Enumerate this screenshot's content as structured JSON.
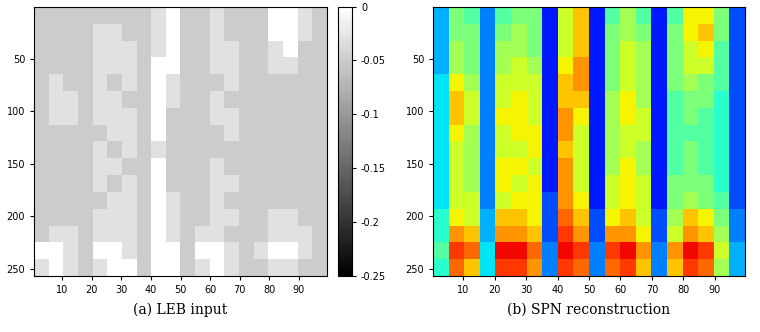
{
  "chart_data": [
    {
      "type": "heatmap",
      "xlabel": "(a) LEB input",
      "color": "gray",
      "xlim": [
        0.5,
        99.5
      ],
      "ylim": [
        256.5,
        0.5
      ],
      "xticks": [
        10,
        20,
        30,
        40,
        50,
        60,
        70,
        80,
        90
      ],
      "yticks": [
        50,
        100,
        150,
        200,
        250
      ],
      "color_range": [
        -0.25,
        0
      ],
      "colorbar": {
        "range": [
          -0.25,
          0
        ],
        "ticks": [
          0,
          -0.05,
          -0.1,
          -0.15,
          -0.2,
          -0.25
        ]
      },
      "cells": [
        [
          -0.05,
          -0.05,
          -0.05,
          -0.05,
          -0.05,
          -0.05,
          -0.05,
          -0.05,
          -0.03,
          0,
          -0.05,
          -0.05,
          -0.03,
          -0.05,
          -0.05,
          -0.05,
          0,
          0,
          -0.03,
          -0.05
        ],
        [
          -0.05,
          -0.05,
          -0.05,
          -0.05,
          -0.03,
          -0.03,
          -0.05,
          -0.05,
          -0.03,
          0,
          -0.05,
          -0.05,
          -0.03,
          -0.05,
          -0.05,
          -0.05,
          0,
          0,
          -0.03,
          -0.05
        ],
        [
          -0.05,
          -0.05,
          -0.05,
          -0.05,
          -0.03,
          -0.03,
          -0.03,
          -0.05,
          -0.03,
          0,
          -0.05,
          -0.05,
          -0.03,
          -0.03,
          -0.05,
          -0.05,
          -0.03,
          0,
          -0.05,
          -0.05
        ],
        [
          -0.05,
          -0.05,
          -0.05,
          -0.05,
          -0.03,
          -0.03,
          -0.03,
          -0.05,
          0,
          0,
          -0.05,
          -0.05,
          -0.03,
          -0.03,
          -0.05,
          -0.05,
          -0.03,
          -0.03,
          -0.05,
          -0.05
        ],
        [
          -0.05,
          -0.03,
          -0.05,
          -0.05,
          -0.03,
          -0.05,
          -0.03,
          -0.05,
          0,
          -0.03,
          -0.05,
          -0.05,
          -0.05,
          -0.03,
          -0.05,
          -0.05,
          -0.05,
          -0.05,
          -0.05,
          -0.05
        ],
        [
          -0.05,
          -0.03,
          -0.03,
          -0.05,
          -0.03,
          -0.03,
          -0.05,
          -0.05,
          0,
          -0.03,
          -0.05,
          -0.05,
          -0.03,
          -0.05,
          -0.05,
          -0.05,
          -0.05,
          -0.05,
          -0.05,
          -0.05
        ],
        [
          -0.05,
          -0.03,
          -0.03,
          -0.05,
          -0.03,
          -0.03,
          -0.03,
          -0.05,
          0,
          -0.05,
          -0.05,
          -0.05,
          -0.03,
          -0.03,
          -0.05,
          -0.05,
          -0.05,
          -0.05,
          -0.05,
          -0.05
        ],
        [
          -0.05,
          -0.05,
          -0.05,
          -0.05,
          -0.05,
          -0.03,
          -0.03,
          -0.05,
          0,
          -0.05,
          -0.05,
          -0.05,
          -0.05,
          -0.03,
          -0.05,
          -0.05,
          -0.05,
          -0.05,
          -0.05,
          -0.05
        ],
        [
          -0.05,
          -0.05,
          -0.05,
          -0.05,
          -0.03,
          -0.05,
          -0.03,
          -0.05,
          -0.03,
          -0.05,
          -0.05,
          -0.05,
          -0.05,
          -0.05,
          -0.05,
          -0.05,
          -0.05,
          -0.05,
          -0.05,
          -0.05
        ],
        [
          -0.05,
          -0.05,
          -0.05,
          -0.05,
          -0.03,
          -0.03,
          -0.05,
          -0.05,
          0,
          -0.05,
          -0.05,
          -0.05,
          -0.03,
          -0.05,
          -0.05,
          -0.05,
          -0.05,
          -0.05,
          -0.05,
          -0.05
        ],
        [
          -0.05,
          -0.05,
          -0.05,
          -0.05,
          -0.03,
          -0.05,
          -0.03,
          -0.05,
          0,
          -0.05,
          -0.05,
          -0.05,
          -0.03,
          -0.03,
          -0.05,
          -0.05,
          -0.05,
          -0.05,
          -0.05,
          -0.05
        ],
        [
          -0.05,
          -0.05,
          -0.05,
          -0.05,
          -0.05,
          -0.03,
          -0.03,
          -0.05,
          0,
          -0.03,
          -0.05,
          -0.05,
          -0.03,
          -0.05,
          -0.05,
          -0.05,
          -0.05,
          -0.05,
          -0.05,
          -0.05
        ],
        [
          -0.05,
          -0.05,
          -0.05,
          -0.05,
          -0.03,
          -0.03,
          -0.03,
          -0.05,
          0,
          -0.03,
          -0.05,
          -0.05,
          -0.03,
          -0.03,
          -0.05,
          -0.05,
          -0.03,
          -0.03,
          -0.05,
          -0.05
        ],
        [
          -0.05,
          -0.03,
          -0.03,
          -0.05,
          -0.03,
          -0.03,
          -0.03,
          -0.05,
          0,
          -0.03,
          -0.05,
          -0.03,
          -0.03,
          -0.05,
          -0.05,
          -0.05,
          -0.03,
          -0.03,
          -0.03,
          -0.05
        ],
        [
          0,
          0,
          -0.03,
          -0.05,
          0,
          0,
          -0.03,
          -0.05,
          0,
          0,
          -0.05,
          0,
          0,
          -0.03,
          -0.05,
          -0.03,
          0,
          0,
          -0.03,
          -0.05
        ],
        [
          -0.03,
          0,
          -0.03,
          -0.05,
          -0.03,
          0,
          0,
          -0.05,
          0,
          0,
          -0.05,
          -0.03,
          0,
          -0.03,
          -0.05,
          -0.05,
          -0.03,
          -0.03,
          -0.05,
          -0.05
        ]
      ]
    },
    {
      "type": "heatmap",
      "xlabel": "(b) SPN reconstruction",
      "color": "jet",
      "xlim": [
        0.5,
        99.5
      ],
      "ylim": [
        256.5,
        0.5
      ],
      "xticks": [
        10,
        20,
        30,
        40,
        50,
        60,
        70,
        80,
        90
      ],
      "yticks": [
        50,
        100,
        150,
        200,
        250
      ],
      "color_range": [
        0,
        1
      ],
      "cells": [
        [
          0.3,
          0.5,
          0.45,
          0.25,
          0.45,
          0.5,
          0.5,
          0.15,
          0.6,
          0.7,
          0.15,
          0.45,
          0.55,
          0.45,
          0.15,
          0.45,
          0.65,
          0.65,
          0.5,
          0.2
        ],
        [
          0.3,
          0.5,
          0.5,
          0.25,
          0.5,
          0.55,
          0.5,
          0.15,
          0.6,
          0.7,
          0.15,
          0.5,
          0.55,
          0.5,
          0.15,
          0.5,
          0.65,
          0.7,
          0.5,
          0.2
        ],
        [
          0.3,
          0.55,
          0.5,
          0.25,
          0.55,
          0.55,
          0.5,
          0.15,
          0.6,
          0.7,
          0.15,
          0.5,
          0.6,
          0.55,
          0.15,
          0.5,
          0.6,
          0.65,
          0.45,
          0.2
        ],
        [
          0.3,
          0.55,
          0.5,
          0.25,
          0.55,
          0.6,
          0.55,
          0.15,
          0.65,
          0.75,
          0.15,
          0.5,
          0.6,
          0.55,
          0.15,
          0.5,
          0.6,
          0.6,
          0.45,
          0.2
        ],
        [
          0.35,
          0.65,
          0.55,
          0.25,
          0.6,
          0.6,
          0.6,
          0.15,
          0.7,
          0.75,
          0.15,
          0.5,
          0.6,
          0.55,
          0.15,
          0.5,
          0.55,
          0.5,
          0.45,
          0.2
        ],
        [
          0.35,
          0.7,
          0.6,
          0.25,
          0.6,
          0.65,
          0.6,
          0.15,
          0.7,
          0.7,
          0.15,
          0.55,
          0.65,
          0.55,
          0.15,
          0.45,
          0.5,
          0.5,
          0.4,
          0.2
        ],
        [
          0.35,
          0.7,
          0.6,
          0.25,
          0.65,
          0.65,
          0.6,
          0.15,
          0.75,
          0.65,
          0.15,
          0.55,
          0.65,
          0.6,
          0.15,
          0.45,
          0.5,
          0.45,
          0.4,
          0.2
        ],
        [
          0.35,
          0.65,
          0.55,
          0.25,
          0.6,
          0.65,
          0.65,
          0.15,
          0.75,
          0.6,
          0.15,
          0.55,
          0.6,
          0.6,
          0.15,
          0.45,
          0.45,
          0.45,
          0.4,
          0.2
        ],
        [
          0.35,
          0.6,
          0.55,
          0.25,
          0.6,
          0.6,
          0.65,
          0.15,
          0.7,
          0.6,
          0.15,
          0.55,
          0.6,
          0.55,
          0.15,
          0.45,
          0.5,
          0.45,
          0.4,
          0.2
        ],
        [
          0.35,
          0.6,
          0.55,
          0.25,
          0.65,
          0.65,
          0.6,
          0.15,
          0.75,
          0.6,
          0.15,
          0.55,
          0.65,
          0.55,
          0.15,
          0.45,
          0.5,
          0.45,
          0.4,
          0.2
        ],
        [
          0.35,
          0.6,
          0.55,
          0.25,
          0.65,
          0.6,
          0.65,
          0.15,
          0.75,
          0.6,
          0.15,
          0.6,
          0.65,
          0.6,
          0.15,
          0.5,
          0.5,
          0.5,
          0.4,
          0.2
        ],
        [
          0.35,
          0.6,
          0.6,
          0.25,
          0.6,
          0.65,
          0.65,
          0.2,
          0.75,
          0.65,
          0.15,
          0.6,
          0.65,
          0.6,
          0.15,
          0.5,
          0.55,
          0.5,
          0.45,
          0.2
        ],
        [
          0.4,
          0.65,
          0.6,
          0.3,
          0.7,
          0.7,
          0.65,
          0.2,
          0.8,
          0.7,
          0.2,
          0.65,
          0.7,
          0.6,
          0.2,
          0.55,
          0.7,
          0.65,
          0.5,
          0.25
        ],
        [
          0.4,
          0.75,
          0.7,
          0.3,
          0.75,
          0.75,
          0.7,
          0.2,
          0.85,
          0.75,
          0.2,
          0.75,
          0.75,
          0.65,
          0.2,
          0.6,
          0.75,
          0.7,
          0.55,
          0.25
        ],
        [
          0.45,
          0.85,
          0.8,
          0.35,
          0.9,
          0.9,
          0.8,
          0.25,
          0.9,
          0.85,
          0.25,
          0.85,
          0.9,
          0.75,
          0.25,
          0.75,
          0.9,
          0.85,
          0.6,
          0.3
        ],
        [
          0.4,
          0.8,
          0.7,
          0.35,
          0.85,
          0.85,
          0.75,
          0.25,
          0.85,
          0.8,
          0.25,
          0.8,
          0.85,
          0.7,
          0.25,
          0.7,
          0.85,
          0.8,
          0.55,
          0.3
        ]
      ]
    }
  ]
}
